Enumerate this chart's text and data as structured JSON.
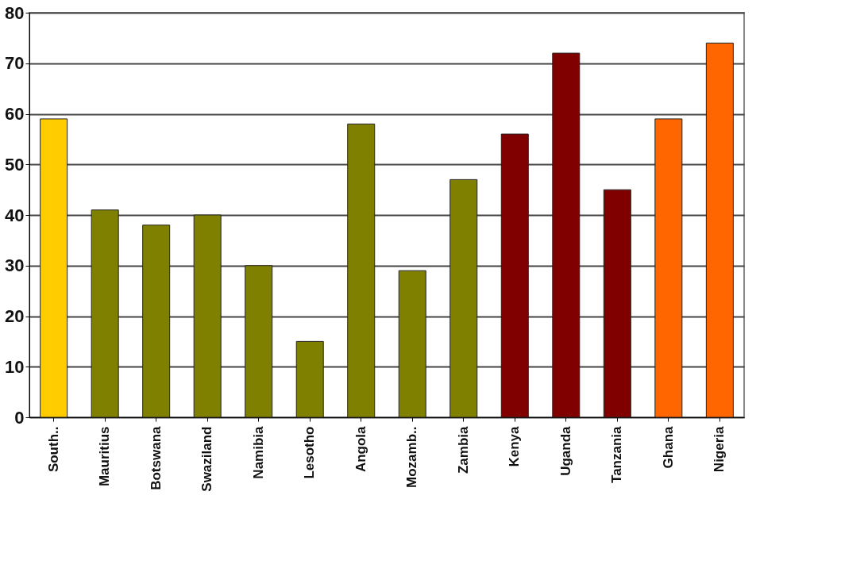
{
  "chart_data": {
    "type": "bar",
    "categories": [
      "South..",
      "Mauritius",
      "Botswana",
      "Swaziland",
      "Namibia",
      "Lesotho",
      "Angola",
      "Mozamb..",
      "Zambia",
      "Kenya",
      "Uganda",
      "Tanzania",
      "Ghana",
      "Nigeria"
    ],
    "values": [
      59,
      41,
      38,
      40,
      30,
      15,
      58,
      29,
      47,
      56,
      72,
      45,
      59,
      74
    ],
    "colors": [
      "#ffcc00",
      "#808000",
      "#808000",
      "#808000",
      "#808000",
      "#808000",
      "#808000",
      "#808000",
      "#808000",
      "#800000",
      "#800000",
      "#800000",
      "#ff6600",
      "#ff6600"
    ],
    "ylim": [
      0,
      80
    ],
    "yticks": [
      0,
      10,
      20,
      30,
      40,
      50,
      60,
      70,
      80
    ],
    "grid": "y"
  }
}
